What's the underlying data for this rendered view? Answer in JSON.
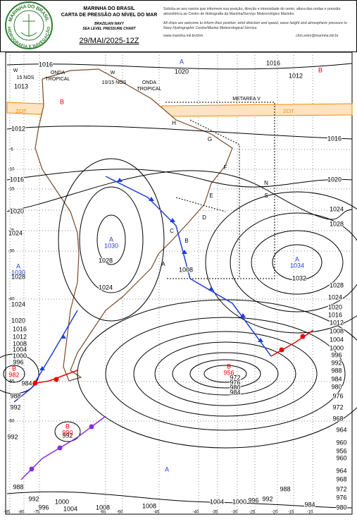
{
  "header": {
    "logo_top": "MARINHA DO BRASIL",
    "logo_bottom": "HIDROGRAFIA E NAVEGAÇÃO",
    "org": "MARINHA DO BRASIL",
    "title": "CARTA DE PRESSÃO AO NÍVEL DO MAR",
    "org_en": "BRAZILIAN NAVY",
    "title_en": "SEA LEVEL PRESSURE CHART",
    "date": "29/MAI/2025-12Z",
    "note_pt": "Solicita-se aos navios que informem sua posição, direção e intensidade do vento, altura das ondas e pressão atmosférica ao Centro de Hidrografia da Marinha/Serviço Meteorológico Marinho.",
    "note_en": "All ships are welcome to inform their position, wind direction and speed, wave height and atmospheric pressure to Navy Hydrographic Centre/Marine Meteorological Service.",
    "url": "www.marinha.mil.br/chm",
    "email": "chm.smm@marinha.mil.br"
  },
  "map": {
    "latitude_labels": [
      "-5",
      "-10",
      "-15",
      "-20",
      "-25",
      "-30",
      "-40",
      "-55",
      "-60"
    ],
    "longitude_labels": [
      "-85",
      "-80",
      "-75",
      "-65",
      "-60",
      "-45",
      "-40",
      "-35",
      "-30",
      "-25",
      "-20",
      "-15",
      "-10"
    ],
    "isobar_labels": [
      "1016",
      "1013",
      "1012",
      "1016",
      "1020",
      "1024",
      "1028",
      "1024",
      "1020",
      "1016",
      "1012",
      "1008",
      "1004",
      "1000",
      "996",
      "984",
      "988",
      "992",
      "992",
      "988",
      "992",
      "996",
      "1000",
      "1004",
      "1008",
      "1008",
      "1020",
      "1016",
      "1012",
      "1016",
      "1020",
      "1024",
      "1028",
      "1028",
      "1024",
      "1020",
      "1016",
      "1012",
      "1008",
      "1004",
      "1000",
      "996",
      "992",
      "988",
      "984",
      "980",
      "976",
      "972",
      "968",
      "964",
      "960",
      "956",
      "960",
      "964",
      "968",
      "972",
      "976",
      "980",
      "984",
      "988",
      "992",
      "996",
      "1000",
      "1004",
      "1008",
      "1032",
      "1024",
      "1028",
      "992",
      "972",
      "976",
      "980",
      "984"
    ],
    "pressure_centers": [
      {
        "letter": "A",
        "value": "1030"
      },
      {
        "letter": "A",
        "value": "1030"
      },
      {
        "letter": "A",
        "value": "1034"
      },
      {
        "letter": "A"
      },
      {
        "letter": "A"
      },
      {
        "letter": "B",
        "value": "982"
      },
      {
        "letter": "B",
        "value": "956"
      },
      {
        "letter": "B",
        "value": "990"
      },
      {
        "letter": "B"
      },
      {
        "letter": "B"
      }
    ],
    "areas": [
      "H",
      "G",
      "F",
      "N",
      "S",
      "E",
      "D",
      "C",
      "B",
      "A"
    ],
    "annotations": [
      "ONDA",
      "TROPICAL",
      "ONDA",
      "TROPICAL",
      "15 NÓS",
      "10/15 NÓS",
      "METAREA V",
      "ZCIT",
      "ZCIT",
      "W",
      "W"
    ]
  }
}
